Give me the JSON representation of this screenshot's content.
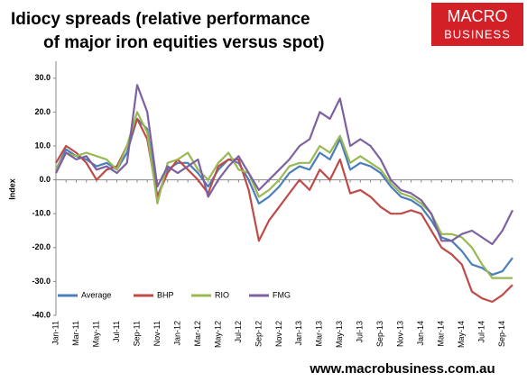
{
  "chart_data": {
    "type": "line",
    "title": [
      "Idiocy spreads (relative performance",
      "of major iron equities versus spot)"
    ],
    "y_label": "Index",
    "categories": [
      "Jan-11",
      null,
      "Mar-11",
      null,
      "May-11",
      null,
      "Jul-11",
      null,
      "Sep-11",
      null,
      "Nov-11",
      null,
      "Jan-12",
      null,
      "Mar-12",
      null,
      "May-12",
      null,
      "Jul-12",
      null,
      "Sep-12",
      null,
      "Nov-12",
      null,
      "Jan-13",
      null,
      "Mar-13",
      null,
      "May-13",
      null,
      "Jul-13",
      null,
      "Sep-13",
      null,
      "Nov-13",
      null,
      "Jan-14",
      null,
      "Mar-14",
      null,
      "May-14",
      null,
      "Jul-14",
      null,
      "Sep-14",
      null
    ],
    "series": [
      {
        "name": "Average",
        "color": "#4a7ebb",
        "values": [
          3,
          9,
          7,
          6,
          4,
          5,
          3,
          8,
          18,
          15,
          -5,
          3,
          5,
          5,
          2,
          -2,
          3,
          6,
          5,
          0,
          -7,
          -5,
          -2,
          2,
          4,
          3,
          8,
          6,
          12,
          3,
          5,
          4,
          2,
          -2,
          -5,
          -6,
          -8,
          -12,
          -17,
          -18,
          -21,
          -25,
          -26,
          -28,
          -27,
          -23
        ]
      },
      {
        "name": "BHP",
        "color": "#be4b48",
        "values": [
          5,
          10,
          8,
          5,
          0,
          3,
          4,
          10,
          18,
          12,
          -5,
          2,
          6,
          3,
          0,
          -4,
          4,
          6,
          6,
          -3,
          -18,
          -12,
          -8,
          -4,
          0,
          -3,
          3,
          0,
          6,
          -4,
          -3,
          -5,
          -8,
          -10,
          -10,
          -9,
          -10,
          -15,
          -20,
          -22,
          -25,
          -33,
          -35,
          -36,
          -34,
          -31
        ]
      },
      {
        "name": "RIO",
        "color": "#98b954",
        "values": [
          3,
          8,
          7,
          8,
          7,
          6,
          3,
          10,
          20,
          14,
          -7,
          5,
          6,
          8,
          3,
          0,
          5,
          8,
          3,
          2,
          -5,
          -3,
          0,
          4,
          5,
          5,
          10,
          8,
          13,
          5,
          7,
          5,
          3,
          -1,
          -4,
          -5,
          -7,
          -10,
          -16,
          -16,
          -17,
          -20,
          -25,
          -29,
          -29,
          -29
        ]
      },
      {
        "name": "FMG",
        "color": "#7d60a0",
        "values": [
          2,
          8,
          6,
          7,
          3,
          4,
          2,
          5,
          28,
          20,
          -2,
          4,
          2,
          4,
          6,
          -5,
          0,
          4,
          7,
          2,
          -3,
          0,
          3,
          6,
          10,
          12,
          20,
          18,
          24,
          10,
          12,
          10,
          6,
          0,
          -3,
          -4,
          -6,
          -10,
          -18,
          -18,
          -16,
          -15,
          -17,
          -19,
          -15,
          -9
        ]
      }
    ],
    "ylim": [
      -40,
      35
    ],
    "yticks": [
      {
        "value": -40,
        "label": "-40.0"
      },
      {
        "value": -30,
        "label": "-30.0"
      },
      {
        "value": -20,
        "label": "-20.0"
      },
      {
        "value": -10,
        "label": "-10.0"
      },
      {
        "value": 0,
        "label": "0.0"
      },
      {
        "value": 10,
        "label": "10.0"
      },
      {
        "value": 20,
        "label": "20.0"
      },
      {
        "value": 30,
        "label": "30.0"
      }
    ],
    "legend": "bottom-left"
  },
  "logo": [
    "MACRO",
    "BUSINESS"
  ],
  "footer": "www.macrobusiness.com.au"
}
